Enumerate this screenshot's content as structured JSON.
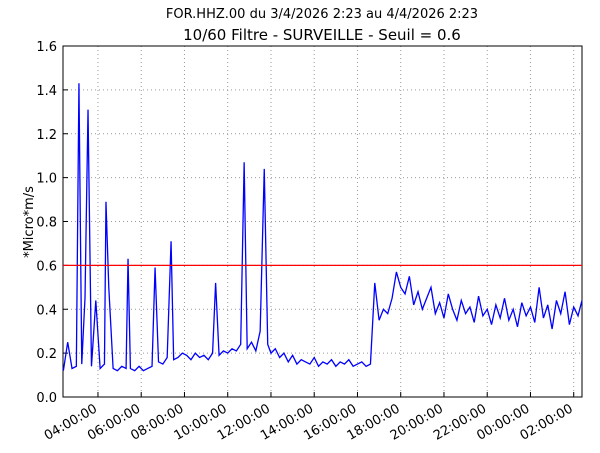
{
  "chart_data": {
    "type": "line",
    "title": "FOR.HHZ.00 du 3/4/2026 2:23 au 4/4/2026 2:23",
    "subtitle": "10/60 Filtre - SURVEILLE - Seuil = 0.6",
    "subtitle_color": "#ff2222",
    "y_label": "*Micro*m/s",
    "xlim": [
      2.383,
      26.383
    ],
    "xticks": [
      {
        "value": 4,
        "label": "04:00:00"
      },
      {
        "value": 6,
        "label": "06:00:00"
      },
      {
        "value": 8,
        "label": "08:00:00"
      },
      {
        "value": 10,
        "label": "10:00:00"
      },
      {
        "value": 12,
        "label": "12:00:00"
      },
      {
        "value": 14,
        "label": "14:00:00"
      },
      {
        "value": 16,
        "label": "16:00:00"
      },
      {
        "value": 18,
        "label": "18:00:00"
      },
      {
        "value": 20,
        "label": "20:00:00"
      },
      {
        "value": 22,
        "label": "22:00:00"
      },
      {
        "value": 24,
        "label": "00:00:00"
      },
      {
        "value": 26,
        "label": "02:00:00"
      }
    ],
    "ylim": [
      0,
      1.6
    ],
    "yticks": [
      {
        "value": 0,
        "label": "0.0"
      },
      0.2,
      0.4,
      0.6,
      0.8,
      {
        "value": 1,
        "label": "1.0"
      },
      1.2,
      1.4,
      1.6
    ],
    "grid": true,
    "threshold": {
      "value": 0.6,
      "color": "#ff0000"
    },
    "x": [
      2.4,
      2.6,
      2.8,
      3.0,
      3.12,
      3.25,
      3.4,
      3.54,
      3.7,
      3.9,
      4.1,
      4.3,
      4.37,
      4.5,
      4.7,
      4.9,
      5.1,
      5.3,
      5.39,
      5.5,
      5.7,
      5.9,
      6.1,
      6.3,
      6.5,
      6.64,
      6.8,
      7.0,
      7.2,
      7.38,
      7.5,
      7.7,
      7.9,
      8.1,
      8.3,
      8.5,
      8.7,
      8.9,
      9.1,
      9.3,
      9.44,
      9.6,
      9.8,
      10.0,
      10.2,
      10.4,
      10.6,
      10.76,
      10.9,
      11.1,
      11.3,
      11.5,
      11.69,
      11.85,
      12.0,
      12.2,
      12.4,
      12.6,
      12.8,
      13.0,
      13.2,
      13.4,
      13.6,
      13.8,
      14.0,
      14.2,
      14.4,
      14.6,
      14.8,
      15.0,
      15.2,
      15.4,
      15.6,
      15.8,
      16.0,
      16.2,
      16.4,
      16.6,
      16.8,
      17.0,
      17.2,
      17.4,
      17.6,
      17.8,
      18.0,
      18.2,
      18.4,
      18.6,
      18.8,
      19.0,
      19.2,
      19.4,
      19.6,
      19.8,
      20.0,
      20.2,
      20.4,
      20.6,
      20.8,
      21.0,
      21.2,
      21.4,
      21.6,
      21.8,
      22.0,
      22.2,
      22.4,
      22.6,
      22.8,
      23.0,
      23.2,
      23.4,
      23.6,
      23.8,
      24.0,
      24.2,
      24.4,
      24.6,
      24.8,
      25.0,
      25.2,
      25.4,
      25.6,
      25.8,
      26.0,
      26.2,
      26.38
    ],
    "series": [
      {
        "name": "FOR.HHZ.00",
        "color": "#0000ff",
        "values": [
          0.12,
          0.25,
          0.13,
          0.14,
          1.43,
          0.15,
          0.45,
          1.31,
          0.14,
          0.44,
          0.13,
          0.15,
          0.89,
          0.5,
          0.13,
          0.12,
          0.14,
          0.13,
          0.63,
          0.13,
          0.12,
          0.14,
          0.12,
          0.13,
          0.14,
          0.59,
          0.16,
          0.15,
          0.18,
          0.71,
          0.17,
          0.18,
          0.2,
          0.19,
          0.17,
          0.2,
          0.18,
          0.19,
          0.17,
          0.2,
          0.52,
          0.19,
          0.21,
          0.2,
          0.22,
          0.21,
          0.24,
          1.07,
          0.22,
          0.25,
          0.21,
          0.3,
          1.04,
          0.24,
          0.2,
          0.22,
          0.18,
          0.2,
          0.16,
          0.19,
          0.15,
          0.17,
          0.16,
          0.15,
          0.18,
          0.14,
          0.16,
          0.15,
          0.17,
          0.14,
          0.16,
          0.15,
          0.17,
          0.14,
          0.15,
          0.16,
          0.14,
          0.15,
          0.52,
          0.35,
          0.4,
          0.38,
          0.45,
          0.57,
          0.5,
          0.47,
          0.55,
          0.42,
          0.48,
          0.4,
          0.45,
          0.5,
          0.38,
          0.43,
          0.36,
          0.47,
          0.4,
          0.35,
          0.44,
          0.38,
          0.41,
          0.34,
          0.46,
          0.37,
          0.4,
          0.33,
          0.42,
          0.36,
          0.45,
          0.35,
          0.4,
          0.32,
          0.43,
          0.37,
          0.41,
          0.34,
          0.5,
          0.36,
          0.42,
          0.31,
          0.44,
          0.38,
          0.48,
          0.33,
          0.41,
          0.37,
          0.44
        ]
      }
    ]
  }
}
